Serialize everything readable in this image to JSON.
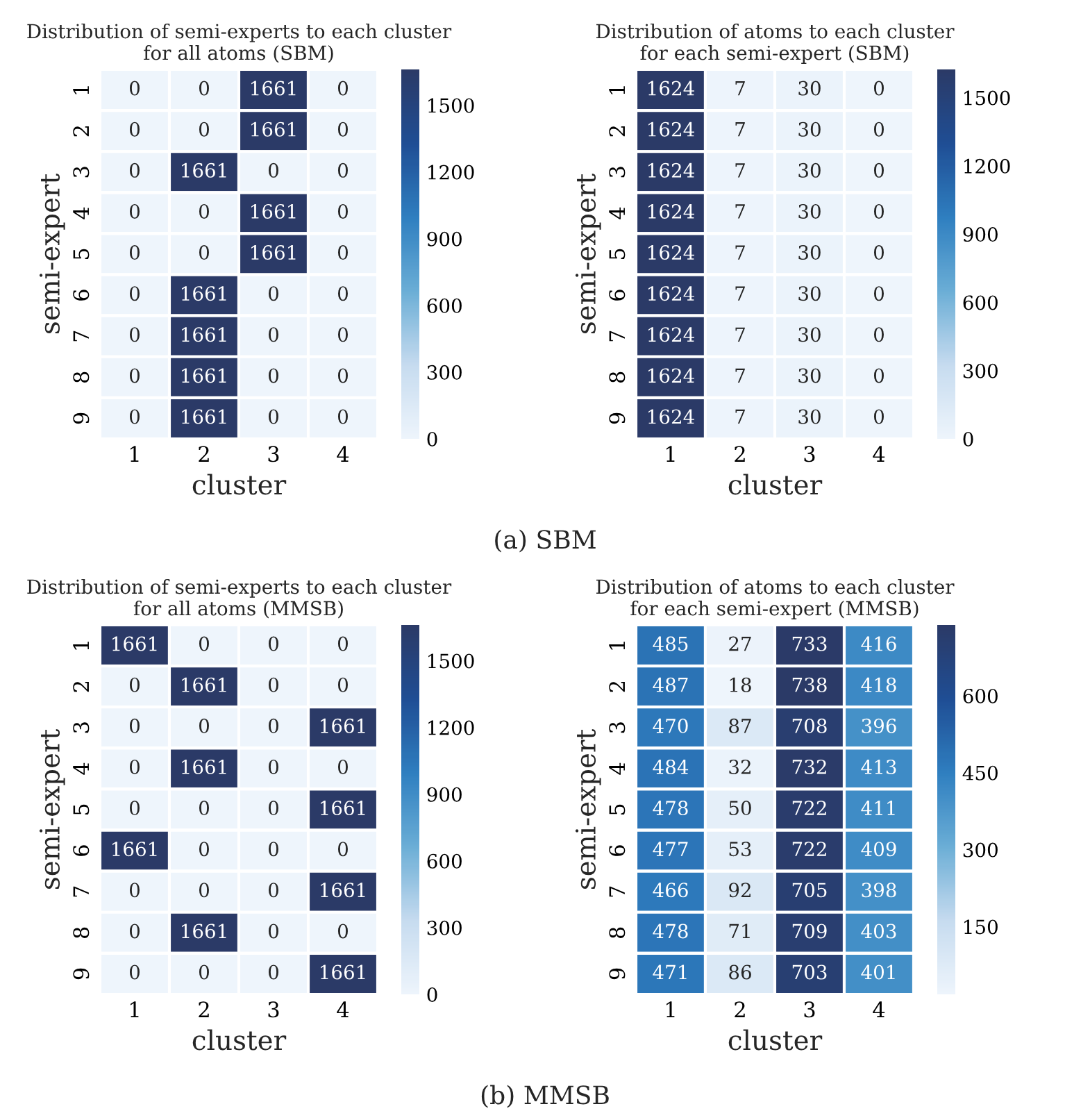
{
  "chart_data": [
    {
      "type": "heatmap",
      "title": "Distribution of semi-experts to each cluster\nfor all atoms (SBM)",
      "xlabel": "cluster",
      "ylabel": "semi-expert",
      "categories": [
        "1",
        "2",
        "3",
        "4"
      ],
      "y_categories": [
        "1",
        "2",
        "3",
        "4",
        "5",
        "6",
        "7",
        "8",
        "9"
      ],
      "cells": [
        [
          0,
          0,
          1661,
          0
        ],
        [
          0,
          0,
          1661,
          0
        ],
        [
          0,
          1661,
          0,
          0
        ],
        [
          0,
          0,
          1661,
          0
        ],
        [
          0,
          0,
          1661,
          0
        ],
        [
          0,
          1661,
          0,
          0
        ],
        [
          0,
          1661,
          0,
          0
        ],
        [
          0,
          1661,
          0,
          0
        ],
        [
          0,
          1661,
          0,
          0
        ]
      ],
      "clim": [
        0,
        1661
      ],
      "cticks": [
        0,
        300,
        600,
        900,
        1200,
        1500
      ],
      "data_labels": true
    },
    {
      "type": "heatmap",
      "title": "Distribution of atoms to each cluster\nfor each semi-expert (SBM)",
      "xlabel": "cluster",
      "ylabel": "semi-expert",
      "categories": [
        "1",
        "2",
        "3",
        "4"
      ],
      "y_categories": [
        "1",
        "2",
        "3",
        "4",
        "5",
        "6",
        "7",
        "8",
        "9"
      ],
      "cells": [
        [
          1624,
          7,
          30,
          0
        ],
        [
          1624,
          7,
          30,
          0
        ],
        [
          1624,
          7,
          30,
          0
        ],
        [
          1624,
          7,
          30,
          0
        ],
        [
          1624,
          7,
          30,
          0
        ],
        [
          1624,
          7,
          30,
          0
        ],
        [
          1624,
          7,
          30,
          0
        ],
        [
          1624,
          7,
          30,
          0
        ],
        [
          1624,
          7,
          30,
          0
        ]
      ],
      "clim": [
        0,
        1624
      ],
      "cticks": [
        0,
        300,
        600,
        900,
        1200,
        1500
      ],
      "data_labels": true,
      "annotations": [
        "(a) SBM"
      ]
    },
    {
      "type": "heatmap",
      "title": "Distribution of semi-experts to each cluster\nfor all atoms (MMSB)",
      "xlabel": "cluster",
      "ylabel": "semi-expert",
      "categories": [
        "1",
        "2",
        "3",
        "4"
      ],
      "y_categories": [
        "1",
        "2",
        "3",
        "4",
        "5",
        "6",
        "7",
        "8",
        "9"
      ],
      "cells": [
        [
          1661,
          0,
          0,
          0
        ],
        [
          0,
          1661,
          0,
          0
        ],
        [
          0,
          0,
          0,
          1661
        ],
        [
          0,
          1661,
          0,
          0
        ],
        [
          0,
          0,
          0,
          1661
        ],
        [
          1661,
          0,
          0,
          0
        ],
        [
          0,
          0,
          0,
          1661
        ],
        [
          0,
          1661,
          0,
          0
        ],
        [
          0,
          0,
          0,
          1661
        ]
      ],
      "clim": [
        0,
        1661
      ],
      "cticks": [
        0,
        300,
        600,
        900,
        1200,
        1500
      ],
      "data_labels": true
    },
    {
      "type": "heatmap",
      "title": "Distribution of atoms to each cluster\nfor each semi-expert (MMSB)",
      "xlabel": "cluster",
      "ylabel": "semi-expert",
      "categories": [
        "1",
        "2",
        "3",
        "4"
      ],
      "y_categories": [
        "1",
        "2",
        "3",
        "4",
        "5",
        "6",
        "7",
        "8",
        "9"
      ],
      "cells": [
        [
          485,
          27,
          733,
          416
        ],
        [
          487,
          18,
          738,
          418
        ],
        [
          470,
          87,
          708,
          396
        ],
        [
          484,
          32,
          732,
          413
        ],
        [
          478,
          50,
          722,
          411
        ],
        [
          477,
          53,
          722,
          409
        ],
        [
          466,
          92,
          705,
          398
        ],
        [
          478,
          71,
          709,
          403
        ],
        [
          471,
          86,
          703,
          401
        ]
      ],
      "clim": [
        18,
        738
      ],
      "cticks": [
        150,
        300,
        450,
        600
      ],
      "data_labels": true,
      "annotations": [
        "(b) MMSB"
      ]
    }
  ]
}
